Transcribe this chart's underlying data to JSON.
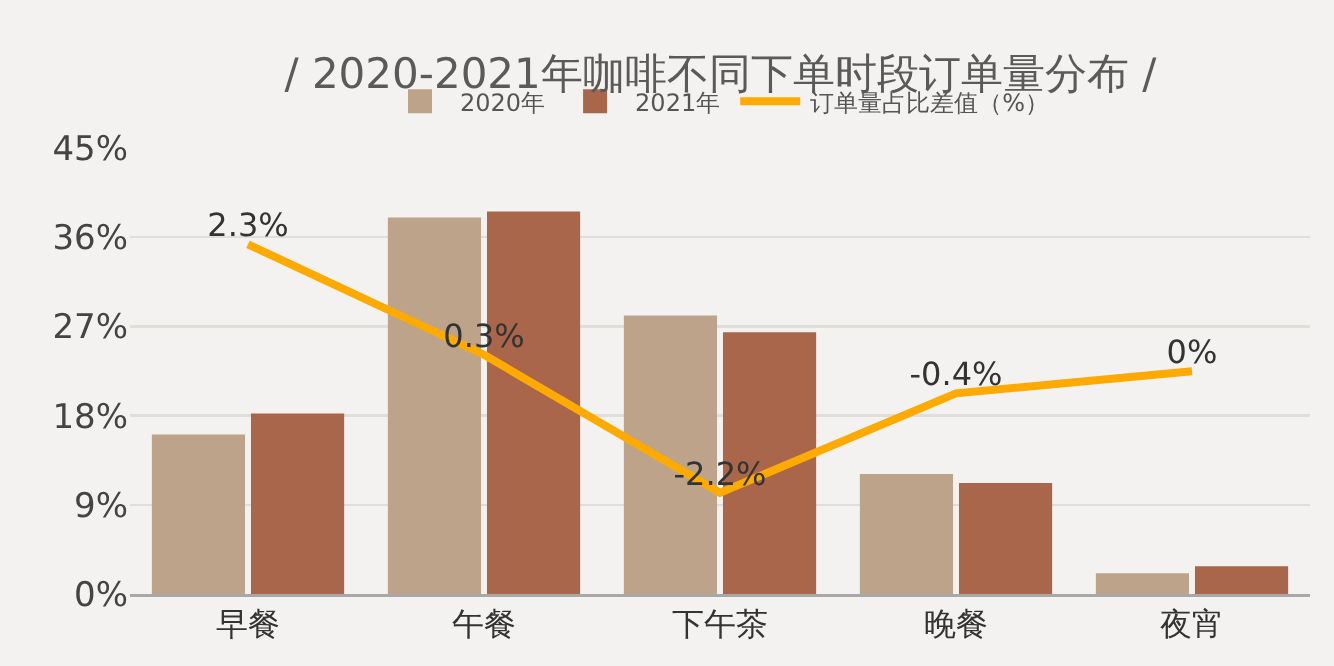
{
  "chart_data": {
    "type": "bar",
    "title": "/ 2020-2021年咖啡不同下单时段订单量分布 /",
    "categories": [
      "早餐",
      "午餐",
      "下午茶",
      "晚餐",
      "夜宵"
    ],
    "series": [
      {
        "name": "2020年",
        "color": "#bca38a",
        "values": [
          16.1,
          38.0,
          28.1,
          12.1,
          2.1
        ]
      },
      {
        "name": "2021年",
        "color": "#a9664a",
        "values": [
          18.2,
          38.6,
          26.4,
          11.2,
          2.8
        ]
      },
      {
        "name": "订单量占比差值（%）",
        "type": "line",
        "axis": "y2",
        "color": "#ffaa00",
        "values": [
          2.3,
          0.3,
          -2.2,
          -0.4,
          0
        ],
        "value_labels": [
          "2.3%",
          "0.3%",
          "-2.2%",
          "-0.4%",
          "0%"
        ]
      }
    ],
    "ylim": [
      0,
      45
    ],
    "yticks": [
      {
        "value": 0,
        "label": "0%"
      },
      {
        "value": 9,
        "label": "9%"
      },
      {
        "value": 18,
        "label": "18%"
      },
      {
        "value": 27,
        "label": "27%"
      },
      {
        "value": 36,
        "label": "36%"
      },
      {
        "value": 45,
        "label": "45%"
      }
    ],
    "grid": "y",
    "legend": "top",
    "marker": "none"
  }
}
